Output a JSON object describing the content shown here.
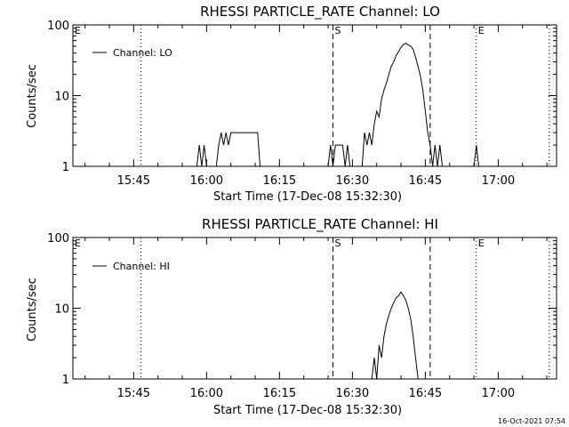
{
  "footer": {
    "timestamp": "16-Oct-2021 07:54"
  },
  "chart_data": [
    {
      "type": "line",
      "title": "RHESSI PARTICLE_RATE Channel: LO",
      "xlabel": "Start Time (17-Dec-08 15:32:30)",
      "ylabel": "Counts/sec",
      "yscale": "log",
      "ylim": [
        1,
        100
      ],
      "xlim": [
        "15:32:30",
        "17:12:00"
      ],
      "x_ticks": [
        "15:45",
        "16:00",
        "16:15",
        "16:30",
        "16:45",
        "17:00"
      ],
      "y_ticks": [
        "1",
        "10",
        "100"
      ],
      "legend": {
        "position": "top-left",
        "entries": [
          "Channel: LO"
        ]
      },
      "markers": [
        {
          "label": "E",
          "time": "15:32:30",
          "style": "none"
        },
        {
          "label": "",
          "time": "15:46:30",
          "style": "dotted"
        },
        {
          "label": "S",
          "time": "16:26:00",
          "style": "dashed"
        },
        {
          "label": "",
          "time": "16:46:00",
          "style": "dashed"
        },
        {
          "label": "E",
          "time": "16:55:30",
          "style": "dotted"
        },
        {
          "label": "",
          "time": "17:10:30",
          "style": "dotted"
        }
      ],
      "series": [
        {
          "name": "Channel: LO",
          "points": [
            [
              "15:32:30",
              1
            ],
            [
              "15:58:00",
              1
            ],
            [
              "15:58:30",
              2
            ],
            [
              "15:59:00",
              1
            ],
            [
              "15:59:30",
              2
            ],
            [
              "16:00:00",
              1
            ],
            [
              "16:02:00",
              1
            ],
            [
              "16:02:30",
              2
            ],
            [
              "16:03:00",
              3
            ],
            [
              "16:03:30",
              2
            ],
            [
              "16:04:00",
              3
            ],
            [
              "16:04:30",
              2
            ],
            [
              "16:05:00",
              3
            ],
            [
              "16:10:30",
              3
            ],
            [
              "16:11:00",
              1
            ],
            [
              "16:25:00",
              1
            ],
            [
              "16:25:30",
              2
            ],
            [
              "16:26:00",
              1
            ],
            [
              "16:26:30",
              2
            ],
            [
              "16:28:00",
              2
            ],
            [
              "16:28:30",
              1
            ],
            [
              "16:29:00",
              2
            ],
            [
              "16:29:30",
              1
            ],
            [
              "16:32:00",
              1
            ],
            [
              "16:32:30",
              3
            ],
            [
              "16:33:00",
              2
            ],
            [
              "16:33:30",
              3
            ],
            [
              "16:34:00",
              2
            ],
            [
              "16:34:30",
              4
            ],
            [
              "16:35:00",
              6
            ],
            [
              "16:35:30",
              5
            ],
            [
              "16:36:00",
              9
            ],
            [
              "16:36:30",
              12
            ],
            [
              "16:37:00",
              15
            ],
            [
              "16:37:30",
              20
            ],
            [
              "16:38:00",
              26
            ],
            [
              "16:38:30",
              30
            ],
            [
              "16:39:00",
              37
            ],
            [
              "16:39:30",
              42
            ],
            [
              "16:40:00",
              48
            ],
            [
              "16:40:30",
              53
            ],
            [
              "16:41:00",
              55
            ],
            [
              "16:41:30",
              52
            ],
            [
              "16:42:00",
              50
            ],
            [
              "16:42:30",
              45
            ],
            [
              "16:43:00",
              35
            ],
            [
              "16:43:30",
              26
            ],
            [
              "16:44:00",
              19
            ],
            [
              "16:44:30",
              12
            ],
            [
              "16:45:00",
              6
            ],
            [
              "16:45:30",
              3
            ],
            [
              "16:46:00",
              2
            ],
            [
              "16:46:30",
              1
            ],
            [
              "16:47:00",
              2
            ],
            [
              "16:47:30",
              1
            ],
            [
              "16:48:00",
              2
            ],
            [
              "16:48:30",
              1
            ],
            [
              "16:55:00",
              1
            ],
            [
              "16:55:30",
              2
            ],
            [
              "16:56:00",
              1
            ],
            [
              "17:12:00",
              1
            ]
          ]
        }
      ]
    },
    {
      "type": "line",
      "title": "RHESSI PARTICLE_RATE Channel: HI",
      "xlabel": "Start Time (17-Dec-08 15:32:30)",
      "ylabel": "Counts/sec",
      "yscale": "log",
      "ylim": [
        1,
        100
      ],
      "xlim": [
        "15:32:30",
        "17:12:00"
      ],
      "x_ticks": [
        "15:45",
        "16:00",
        "16:15",
        "16:30",
        "16:45",
        "17:00"
      ],
      "y_ticks": [
        "1",
        "10",
        "100"
      ],
      "legend": {
        "position": "top-left",
        "entries": [
          "Channel: HI"
        ]
      },
      "markers": [
        {
          "label": "E",
          "time": "15:32:30",
          "style": "none"
        },
        {
          "label": "",
          "time": "15:46:30",
          "style": "dotted"
        },
        {
          "label": "S",
          "time": "16:26:00",
          "style": "dashed"
        },
        {
          "label": "",
          "time": "16:46:00",
          "style": "dashed"
        },
        {
          "label": "E",
          "time": "16:55:30",
          "style": "dotted"
        },
        {
          "label": "",
          "time": "17:10:30",
          "style": "dotted"
        }
      ],
      "series": [
        {
          "name": "Channel: HI",
          "points": [
            [
              "15:32:30",
              1
            ],
            [
              "16:34:00",
              1
            ],
            [
              "16:34:30",
              2
            ],
            [
              "16:35:00",
              1
            ],
            [
              "16:35:30",
              3
            ],
            [
              "16:36:00",
              2
            ],
            [
              "16:36:30",
              4
            ],
            [
              "16:37:00",
              6
            ],
            [
              "16:37:30",
              8
            ],
            [
              "16:38:00",
              10
            ],
            [
              "16:38:30",
              12
            ],
            [
              "16:39:00",
              14
            ],
            [
              "16:39:30",
              15
            ],
            [
              "16:40:00",
              17
            ],
            [
              "16:40:30",
              15
            ],
            [
              "16:41:00",
              13
            ],
            [
              "16:41:30",
              10
            ],
            [
              "16:42:00",
              7
            ],
            [
              "16:42:30",
              4
            ],
            [
              "16:43:00",
              2
            ],
            [
              "16:43:30",
              1
            ],
            [
              "17:12:00",
              1
            ]
          ]
        }
      ]
    }
  ]
}
